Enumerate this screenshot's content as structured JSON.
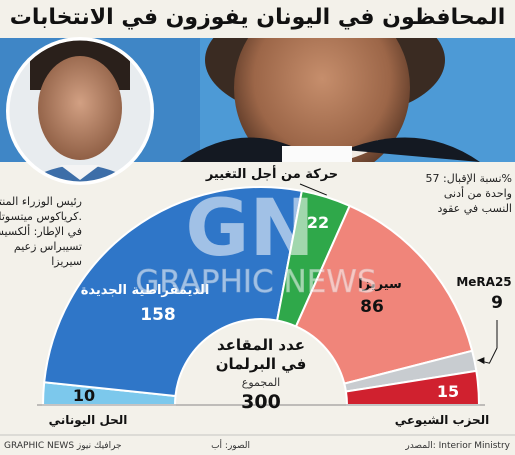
{
  "title": "المحافظون في اليونان يفوزون في الانتخابات المبكرة",
  "caption": {
    "lines": [
      "رئيس الوزراء المنتخب",
      "كرياكوس ميتسوتاكيس.",
      "في الإطار: ألكسيس",
      "تسيبراس زعيم",
      "سيريزا"
    ]
  },
  "turnout": {
    "lines": [
      "نسبة الإقبال: 57%",
      "واحدة من أدنى",
      "النسب في عقود"
    ]
  },
  "center": {
    "label_lines": [
      "عدد المقاعد",
      "في البرلمان"
    ],
    "total_label": "المجموع",
    "total": "300"
  },
  "watermark": {
    "logo": "GN",
    "text": "GRAPHIC NEWS"
  },
  "footer": {
    "source": "المصدر: Interior Ministry",
    "photos": "الصور: أب",
    "credit": "GRAPHIC NEWS جرافيك نيوز"
  },
  "colors": {
    "nd": "#2f76c8",
    "syriza": "#f0857a",
    "change": "#2fa84a",
    "elliniki": "#7cc8ec",
    "kke": "#d0212f",
    "mera25": "#c8ccd0",
    "photo_bg": "#4d9ad6",
    "paper": "#f3f1ea"
  },
  "chart_data": {
    "type": "pie",
    "subtype": "parliament-hemicycle",
    "total": 300,
    "order": "left-to-right",
    "series": [
      {
        "name": "الحل اليوناني",
        "value": 10,
        "color": "#7cc8ec"
      },
      {
        "name": "الديمقراطية الجديدة",
        "value": 158,
        "color": "#2f76c8"
      },
      {
        "name": "حركة من أجل التغيير",
        "value": 22,
        "color": "#2fa84a"
      },
      {
        "name": "سيريزا",
        "value": 86,
        "color": "#f0857a"
      },
      {
        "name": "MeRA25",
        "value": 9,
        "color": "#c8ccd0"
      },
      {
        "name": "الحزب الشيوعي",
        "value": 15,
        "color": "#d0212f"
      }
    ]
  }
}
